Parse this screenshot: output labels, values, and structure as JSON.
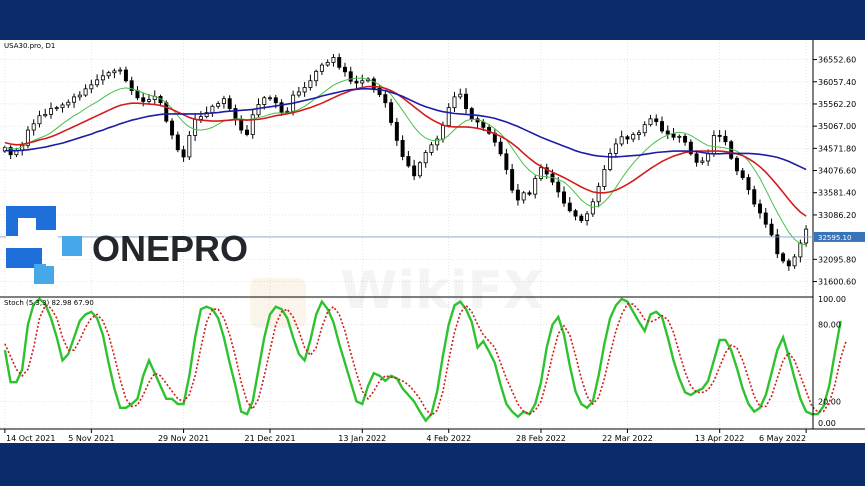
{
  "header": {
    "symbol_label": "USA30.pro, D1",
    "stoch_label": "Stoch (5,3,3) 82.98 67.90"
  },
  "brand": {
    "logo_text": "ONEPRO",
    "watermark": "WikiFX"
  },
  "colors": {
    "background": "#0b2b6b",
    "grid": "#d4d4d4",
    "candle": "#000000",
    "ma_fast": "#48c048",
    "ma_mid": "#d21c1c",
    "ma_slow": "#1c1ca8",
    "stoch_main": "#2fc22f",
    "stoch_signal": "#d21c1c",
    "logo_blue": "#1e6fd9",
    "logo_dark": "#23262b",
    "price_tag": "#3a74b8"
  },
  "chart_data": [
    {
      "type": "candlestick",
      "title": "USA30.pro, D1",
      "x_ticks": [
        "14 Oct 2021",
        "5 Nov 2021",
        "29 Nov 2021",
        "21 Dec 2021",
        "13 Jan 2022",
        "4 Feb 2022",
        "28 Feb 2022",
        "22 Mar 2022",
        "13 Apr 2022",
        "6 May 2022"
      ],
      "y_ticks": [
        "36552.60",
        "36057.40",
        "35562.20",
        "35067.00",
        "34571.80",
        "34076.60",
        "33581.40",
        "33086.20",
        "32095.80",
        "31600.60"
      ],
      "ylim": [
        31300,
        36900
      ],
      "current_price": "32595.10",
      "series": [
        {
          "name": "price_close",
          "values": [
            34590,
            34430,
            34520,
            34640,
            34980,
            35120,
            35300,
            35330,
            35460,
            35480,
            35540,
            35600,
            35720,
            35760,
            35900,
            35990,
            36100,
            36190,
            36260,
            36300,
            36320,
            36080,
            35860,
            35700,
            35620,
            35660,
            35730,
            35590,
            35180,
            34870,
            34540,
            34380,
            34860,
            35220,
            35280,
            35370,
            35510,
            35570,
            35680,
            35460,
            35210,
            34980,
            34880,
            35320,
            35550,
            35700,
            35700,
            35590,
            35380,
            35400,
            35760,
            35830,
            35930,
            36080,
            36290,
            36430,
            36490,
            36600,
            36380,
            36280,
            36070,
            36030,
            36080,
            36120,
            35910,
            35770,
            35590,
            35150,
            34750,
            34390,
            34180,
            33960,
            34250,
            34480,
            34650,
            34780,
            35080,
            35480,
            35720,
            35780,
            35460,
            35230,
            35160,
            35040,
            34910,
            34710,
            34450,
            34100,
            33640,
            33420,
            33580,
            33550,
            33900,
            34140,
            34000,
            33820,
            33600,
            33350,
            33180,
            33060,
            32960,
            33110,
            33380,
            33720,
            34100,
            34460,
            34670,
            34830,
            34780,
            34880,
            34920,
            35100,
            35230,
            35170,
            34960,
            34890,
            34820,
            34840,
            34710,
            34450,
            34260,
            34290,
            34450,
            34860,
            34840,
            34720,
            34350,
            34070,
            33920,
            33650,
            33330,
            33130,
            32880,
            32640,
            32220,
            32060,
            31950,
            32150,
            32460,
            32770
          ],
          "color": "#000000"
        },
        {
          "name": "ma_fast",
          "values": [
            34600,
            34560,
            34560,
            34600,
            34680,
            34750,
            34800,
            34850,
            34920,
            35020,
            35120,
            35210,
            35300,
            35370,
            35460,
            35540,
            35610,
            35700,
            35780,
            35850,
            35900,
            35920,
            35900,
            35860,
            35810,
            35760,
            35730,
            35680,
            35590,
            35460,
            35300,
            35150,
            35050,
            34990,
            34980,
            35000,
            35040,
            35110,
            35180,
            35210,
            35230,
            35230,
            35210,
            35230,
            35260,
            35290,
            35330,
            35360,
            35360,
            35360,
            35390,
            35440,
            35510,
            35600,
            35700,
            35790,
            35890,
            35980,
            36040,
            36090,
            36120,
            36140,
            36140,
            36110,
            36060,
            35990,
            35900,
            35770,
            35600,
            35420,
            35230,
            35050,
            34900,
            34800,
            34750,
            34740,
            34770,
            34860,
            34990,
            35100,
            35190,
            35220,
            35210,
            35170,
            35100,
            35010,
            34900,
            34760,
            34580,
            34390,
            34210,
            34080,
            33980,
            33950,
            33940,
            33920,
            33880,
            33820,
            33710,
            33570,
            33420,
            33320,
            33260,
            33280,
            33380,
            33520,
            33700,
            33900,
            34080,
            34240,
            34380,
            34510,
            34630,
            34730,
            34810,
            34870,
            34910,
            34930,
            34910,
            34860,
            34780,
            34700,
            34630,
            34610,
            34600,
            34580,
            34550,
            34510,
            34420,
            34290,
            34110,
            33900,
            33650,
            33390,
            33140,
            32910,
            32700,
            32540,
            32440,
            32420
          ],
          "color": "#48c048"
        },
        {
          "name": "ma_mid",
          "values": [
            34700,
            34670,
            34650,
            34660,
            34690,
            34720,
            34760,
            34790,
            34830,
            34880,
            34940,
            35000,
            35060,
            35120,
            35180,
            35240,
            35300,
            35360,
            35420,
            35480,
            35530,
            35560,
            35580,
            35580,
            35570,
            35560,
            35550,
            35530,
            35490,
            35440,
            35380,
            35320,
            35260,
            35220,
            35200,
            35190,
            35180,
            35180,
            35190,
            35200,
            35210,
            35210,
            35200,
            35210,
            35220,
            35240,
            35270,
            35300,
            35320,
            35340,
            35370,
            35400,
            35440,
            35480,
            35530,
            35580,
            35640,
            35700,
            35760,
            35810,
            35860,
            35900,
            35930,
            35950,
            35950,
            35940,
            35910,
            35860,
            35790,
            35700,
            35600,
            35500,
            35400,
            35300,
            35220,
            35150,
            35090,
            35060,
            35050,
            35050,
            35050,
            35040,
            35020,
            34990,
            34950,
            34900,
            34840,
            34770,
            34680,
            34580,
            34460,
            34350,
            34250,
            34170,
            34100,
            34040,
            33980,
            33920,
            33850,
            33780,
            33710,
            33650,
            33600,
            33580,
            33580,
            33600,
            33640,
            33700,
            33770,
            33850,
            33940,
            34030,
            34120,
            34200,
            34280,
            34340,
            34400,
            34440,
            34480,
            34500,
            34510,
            34510,
            34510,
            34510,
            34510,
            34500,
            34480,
            34450,
            34410,
            34340,
            34260,
            34160,
            34040,
            33900,
            33750,
            33590,
            33430,
            33280,
            33150,
            33060
          ],
          "color": "#d21c1c"
        },
        {
          "name": "ma_slow",
          "values": [
            34520,
            34520,
            34520,
            34530,
            34540,
            34560,
            34580,
            34600,
            34630,
            34660,
            34690,
            34730,
            34770,
            34810,
            34850,
            34890,
            34940,
            34980,
            35030,
            35070,
            35120,
            35160,
            35200,
            35230,
            35260,
            35290,
            35310,
            35330,
            35340,
            35340,
            35340,
            35340,
            35340,
            35340,
            35340,
            35350,
            35360,
            35370,
            35390,
            35400,
            35410,
            35420,
            35430,
            35440,
            35460,
            35480,
            35500,
            35520,
            35540,
            35560,
            35580,
            35610,
            35640,
            35670,
            35700,
            35740,
            35770,
            35800,
            35830,
            35860,
            35880,
            35890,
            35900,
            35900,
            35890,
            35880,
            35860,
            35820,
            35780,
            35730,
            35670,
            35610,
            35550,
            35500,
            35460,
            35420,
            35390,
            35370,
            35350,
            35340,
            35330,
            35320,
            35310,
            35290,
            35270,
            35240,
            35200,
            35160,
            35110,
            35060,
            35000,
            34940,
            34880,
            34820,
            34770,
            34720,
            34670,
            34620,
            34570,
            34520,
            34480,
            34450,
            34420,
            34400,
            34390,
            34380,
            34380,
            34390,
            34400,
            34410,
            34420,
            34440,
            34460,
            34480,
            34490,
            34500,
            34510,
            34510,
            34510,
            34510,
            34500,
            34480,
            34460,
            34450,
            34450,
            34460,
            34460,
            34460,
            34460,
            34460,
            34450,
            34440,
            34420,
            34400,
            34370,
            34330,
            34280,
            34220,
            34160,
            34100
          ],
          "color": "#1c1ca8"
        }
      ]
    },
    {
      "type": "line",
      "title": "Stoch (5,3,3) 82.98 67.90",
      "y_ticks": [
        "100.00",
        "80.00",
        "20.00",
        "0.00"
      ],
      "ylim": [
        0,
        100
      ],
      "series": [
        {
          "name": "main",
          "values": [
            60,
            35,
            35,
            45,
            80,
            96,
            100,
            96,
            85,
            70,
            52,
            57,
            70,
            83,
            88,
            90,
            85,
            72,
            50,
            30,
            15,
            15,
            18,
            22,
            40,
            52,
            42,
            32,
            22,
            22,
            18,
            18,
            40,
            70,
            92,
            94,
            92,
            85,
            70,
            50,
            32,
            12,
            10,
            20,
            45,
            70,
            88,
            94,
            92,
            85,
            70,
            57,
            52,
            68,
            88,
            98,
            92,
            82,
            65,
            50,
            35,
            20,
            18,
            32,
            42,
            40,
            36,
            40,
            38,
            30,
            25,
            20,
            12,
            5,
            10,
            28,
            56,
            80,
            95,
            98,
            92,
            82,
            62,
            67,
            59,
            50,
            33,
            18,
            12,
            8,
            12,
            10,
            18,
            35,
            62,
            80,
            86,
            72,
            48,
            28,
            18,
            15,
            20,
            40,
            65,
            85,
            95,
            100,
            98,
            90,
            82,
            75,
            88,
            90,
            86,
            70,
            52,
            38,
            27,
            25,
            28,
            30,
            36,
            52,
            68,
            68,
            60,
            46,
            30,
            18,
            12,
            15,
            25,
            42,
            60,
            70,
            55,
            38,
            22,
            12,
            10,
            10,
            16,
            32,
            58,
            83
          ],
          "color": "#2fc22f"
        },
        {
          "name": "signal",
          "values": [
            65,
            55,
            45,
            40,
            45,
            62,
            85,
            95,
            93,
            85,
            70,
            60,
            60,
            68,
            78,
            85,
            88,
            83,
            72,
            55,
            37,
            22,
            16,
            17,
            25,
            35,
            42,
            40,
            34,
            28,
            22,
            20,
            25,
            40,
            62,
            82,
            92,
            92,
            85,
            72,
            55,
            35,
            20,
            14,
            22,
            40,
            60,
            80,
            90,
            92,
            86,
            75,
            62,
            56,
            62,
            78,
            90,
            94,
            88,
            75,
            58,
            42,
            28,
            22,
            28,
            36,
            40,
            39,
            38,
            36,
            33,
            28,
            22,
            14,
            9,
            13,
            28,
            52,
            74,
            89,
            95,
            90,
            80,
            72,
            67,
            62,
            50,
            38,
            28,
            18,
            12,
            10,
            13,
            20,
            36,
            56,
            73,
            79,
            72,
            56,
            38,
            24,
            18,
            23,
            38,
            57,
            75,
            88,
            96,
            96,
            91,
            84,
            82,
            84,
            87,
            84,
            74,
            58,
            43,
            32,
            27,
            27,
            29,
            36,
            47,
            58,
            64,
            62,
            52,
            38,
            24,
            16,
            16,
            24,
            38,
            52,
            58,
            52,
            40,
            28,
            16,
            12,
            12,
            19,
            33,
            54,
            68
          ],
          "color": "#d21c1c"
        }
      ]
    }
  ]
}
